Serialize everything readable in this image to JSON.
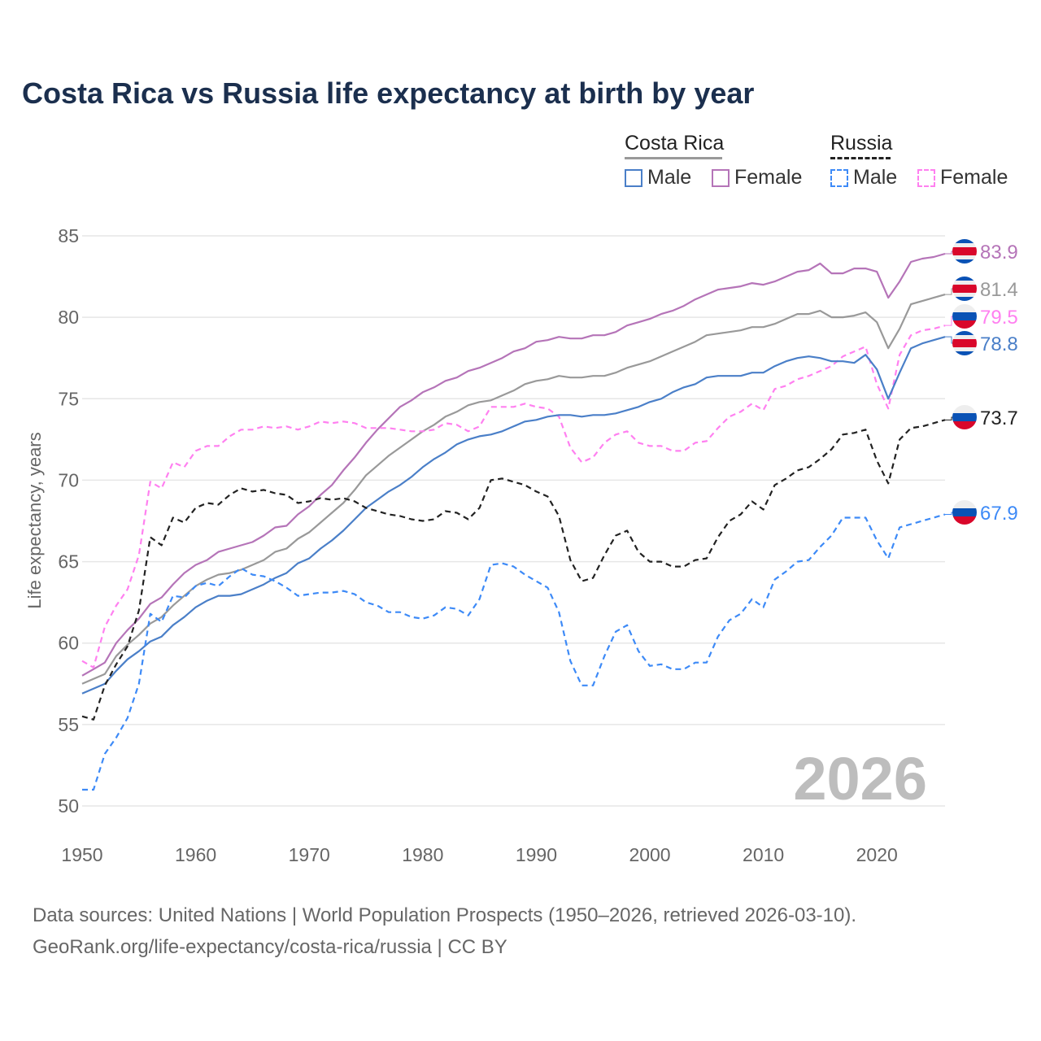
{
  "title": "Costa Rica vs Russia life expectancy at birth by year",
  "legend": {
    "groups": [
      {
        "name": "Costa Rica",
        "line_color": "#999999",
        "style": "solid",
        "items": [
          {
            "label": "Male",
            "color": "#4a7fc8"
          },
          {
            "label": "Female",
            "color": "#b574b8"
          }
        ]
      },
      {
        "name": "Russia",
        "line_color": "#222222",
        "style": "dashed",
        "items": [
          {
            "label": "Male",
            "color": "#3d8af7"
          },
          {
            "label": "Female",
            "color": "#ff80f0"
          }
        ]
      }
    ]
  },
  "footer": {
    "line1": "Data sources: United Nations | World Population Prospects (1950–2026, retrieved 2026-03-10).",
    "line2": "GeoRank.org/life-expectancy/costa-rica/russia | CC BY"
  },
  "chart_data": {
    "type": "line",
    "title": "Costa Rica vs Russia life expectancy at birth by year",
    "xlabel": "",
    "ylabel": "Life expectancy, years",
    "xlim": [
      1950,
      2026
    ],
    "ylim": [
      50,
      85
    ],
    "x_start": 1950,
    "xticks": [
      "1950",
      "1960",
      "1970",
      "1980",
      "1990",
      "2000",
      "2010",
      "2020"
    ],
    "yticks": [
      "50",
      "55",
      "60",
      "65",
      "70",
      "75",
      "80",
      "85"
    ],
    "grid": true,
    "year_watermark": "2026",
    "series": [
      {
        "name": "Costa Rica Female",
        "country": "Costa Rica",
        "color": "#b574b8",
        "dashed": false,
        "end_label": "83.9",
        "values": [
          58.0,
          58.4,
          58.8,
          60.0,
          60.8,
          61.5,
          62.4,
          62.8,
          63.6,
          64.3,
          64.8,
          65.1,
          65.6,
          65.8,
          66.0,
          66.2,
          66.6,
          67.1,
          67.2,
          67.9,
          68.4,
          69.1,
          69.7,
          70.6,
          71.4,
          72.3,
          73.1,
          73.8,
          74.5,
          74.9,
          75.4,
          75.7,
          76.1,
          76.3,
          76.7,
          76.9,
          77.2,
          77.5,
          77.9,
          78.1,
          78.5,
          78.6,
          78.8,
          78.7,
          78.7,
          78.9,
          78.9,
          79.1,
          79.5,
          79.7,
          79.9,
          80.2,
          80.4,
          80.7,
          81.1,
          81.4,
          81.7,
          81.8,
          81.9,
          82.1,
          82.0,
          82.2,
          82.5,
          82.8,
          82.9,
          83.3,
          82.7,
          82.7,
          83.0,
          83.0,
          82.8,
          81.2,
          82.2,
          83.4,
          83.6,
          83.7,
          83.9
        ]
      },
      {
        "name": "Costa Rica Total",
        "country": "Costa Rica",
        "color": "#999999",
        "dashed": false,
        "end_label": "81.4",
        "values": [
          57.5,
          57.8,
          58.1,
          59.2,
          59.9,
          60.5,
          61.2,
          61.6,
          62.3,
          62.9,
          63.5,
          63.9,
          64.2,
          64.3,
          64.5,
          64.8,
          65.1,
          65.6,
          65.8,
          66.4,
          66.8,
          67.4,
          68.0,
          68.6,
          69.4,
          70.3,
          70.9,
          71.5,
          72.0,
          72.5,
          73.0,
          73.4,
          73.9,
          74.2,
          74.6,
          74.8,
          74.9,
          75.2,
          75.5,
          75.9,
          76.1,
          76.2,
          76.4,
          76.3,
          76.3,
          76.4,
          76.4,
          76.6,
          76.9,
          77.1,
          77.3,
          77.6,
          77.9,
          78.2,
          78.5,
          78.9,
          79.0,
          79.1,
          79.2,
          79.4,
          79.4,
          79.6,
          79.9,
          80.2,
          80.2,
          80.4,
          80.0,
          80.0,
          80.1,
          80.3,
          79.7,
          78.1,
          79.3,
          80.8,
          81.0,
          81.2,
          81.4
        ]
      },
      {
        "name": "Russia Female",
        "country": "Russia",
        "color": "#ff80f0",
        "dashed": true,
        "end_label": "79.5",
        "values": [
          58.9,
          58.5,
          61.0,
          62.3,
          63.3,
          65.4,
          69.9,
          69.5,
          71.1,
          70.8,
          71.8,
          72.1,
          72.1,
          72.7,
          73.1,
          73.1,
          73.3,
          73.2,
          73.3,
          73.1,
          73.3,
          73.6,
          73.5,
          73.6,
          73.5,
          73.2,
          73.2,
          73.2,
          73.1,
          73.0,
          73.0,
          73.1,
          73.5,
          73.4,
          73.0,
          73.3,
          74.5,
          74.5,
          74.5,
          74.7,
          74.5,
          74.4,
          73.9,
          72.0,
          71.1,
          71.4,
          72.3,
          72.8,
          73.0,
          72.3,
          72.1,
          72.1,
          71.8,
          71.8,
          72.3,
          72.4,
          73.2,
          73.9,
          74.2,
          74.7,
          74.3,
          75.6,
          75.8,
          76.2,
          76.4,
          76.7,
          77.0,
          77.6,
          77.9,
          78.2,
          75.9,
          74.4,
          77.7,
          78.9,
          79.2,
          79.3,
          79.5
        ]
      },
      {
        "name": "Costa Rica Male",
        "country": "Costa Rica",
        "color": "#4a7fc8",
        "dashed": false,
        "end_label": "78.8",
        "values": [
          56.9,
          57.2,
          57.5,
          58.3,
          59.0,
          59.5,
          60.1,
          60.4,
          61.1,
          61.6,
          62.2,
          62.6,
          62.9,
          62.9,
          63.0,
          63.3,
          63.6,
          64.0,
          64.3,
          64.9,
          65.2,
          65.8,
          66.3,
          66.9,
          67.6,
          68.3,
          68.8,
          69.3,
          69.7,
          70.2,
          70.8,
          71.3,
          71.7,
          72.2,
          72.5,
          72.7,
          72.8,
          73.0,
          73.3,
          73.6,
          73.7,
          73.9,
          74.0,
          74.0,
          73.9,
          74.0,
          74.0,
          74.1,
          74.3,
          74.5,
          74.8,
          75.0,
          75.4,
          75.7,
          75.9,
          76.3,
          76.4,
          76.4,
          76.4,
          76.6,
          76.6,
          77.0,
          77.3,
          77.5,
          77.6,
          77.5,
          77.3,
          77.3,
          77.2,
          77.7,
          76.8,
          75.0,
          76.6,
          78.1,
          78.4,
          78.6,
          78.8
        ]
      },
      {
        "name": "Russia Total",
        "country": "Russia",
        "color": "#222222",
        "dashed": true,
        "end_label": "73.7",
        "values": [
          55.5,
          55.3,
          57.4,
          58.7,
          59.8,
          62.0,
          66.5,
          66.0,
          67.7,
          67.4,
          68.3,
          68.6,
          68.5,
          69.1,
          69.5,
          69.3,
          69.4,
          69.2,
          69.1,
          68.6,
          68.7,
          68.9,
          68.8,
          68.9,
          68.7,
          68.3,
          68.1,
          67.9,
          67.8,
          67.6,
          67.5,
          67.6,
          68.1,
          68.0,
          67.6,
          68.3,
          70.0,
          70.1,
          69.9,
          69.7,
          69.3,
          69.0,
          67.8,
          65.1,
          63.8,
          64.0,
          65.4,
          66.6,
          66.9,
          65.6,
          65.0,
          65.0,
          64.7,
          64.7,
          65.1,
          65.2,
          66.5,
          67.5,
          67.9,
          68.7,
          68.2,
          69.7,
          70.1,
          70.6,
          70.8,
          71.3,
          71.9,
          72.8,
          72.9,
          73.1,
          71.2,
          69.8,
          72.5,
          73.2,
          73.3,
          73.5,
          73.7
        ]
      },
      {
        "name": "Russia Male",
        "country": "Russia",
        "color": "#3d8af7",
        "dashed": true,
        "end_label": "67.9",
        "values": [
          51.0,
          51.0,
          53.2,
          54.2,
          55.4,
          57.5,
          61.8,
          61.3,
          62.9,
          62.8,
          63.5,
          63.7,
          63.5,
          64.1,
          64.6,
          64.2,
          64.1,
          63.8,
          63.4,
          62.9,
          63.0,
          63.1,
          63.1,
          63.2,
          63.0,
          62.5,
          62.3,
          61.9,
          61.9,
          61.6,
          61.5,
          61.7,
          62.2,
          62.1,
          61.7,
          62.7,
          64.8,
          64.9,
          64.7,
          64.2,
          63.8,
          63.4,
          61.9,
          58.9,
          57.4,
          57.4,
          59.2,
          60.7,
          61.1,
          59.5,
          58.6,
          58.7,
          58.4,
          58.4,
          58.8,
          58.8,
          60.4,
          61.4,
          61.8,
          62.7,
          62.2,
          63.9,
          64.4,
          65.0,
          65.1,
          65.9,
          66.6,
          67.7,
          67.7,
          67.7,
          66.3,
          65.2,
          67.1,
          67.3,
          67.5,
          67.7,
          67.9
        ]
      }
    ]
  }
}
